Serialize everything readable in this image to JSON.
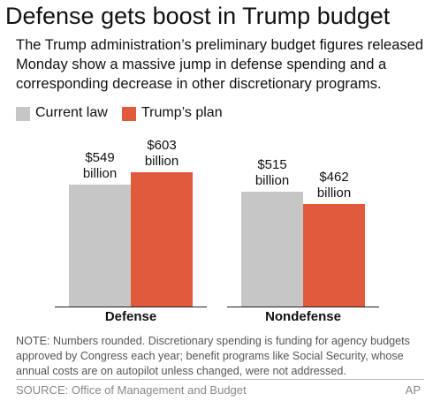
{
  "title": "Defense gets boost in Trump budget",
  "subtitle": "The Trump administration’s preliminary budget figures released Monday show a massive jump in defense spending and a corresponding decrease in other discretionary programs.",
  "chart_data": {
    "type": "bar",
    "categories": [
      "Defense",
      "Nondefense"
    ],
    "series": [
      {
        "name": "Current law",
        "color": "#c6c6c6",
        "values": [
          549,
          515
        ],
        "value_labels": [
          "$549 billion",
          "$515 billion"
        ]
      },
      {
        "name": "Trump’s plan",
        "color": "#e05a3b",
        "values": [
          603,
          462
        ],
        "value_labels": [
          "$603 billion",
          "$462 billion"
        ]
      }
    ]
  },
  "note": "NOTE: Numbers rounded. Discretionary spending is funding for agency budgets approved by Congress each year; benefit programs like Social Security, whose annual costs are on autopilot unless changed, were not addressed.",
  "source": "SOURCE: Office of Management and Budget",
  "credit": "AP"
}
